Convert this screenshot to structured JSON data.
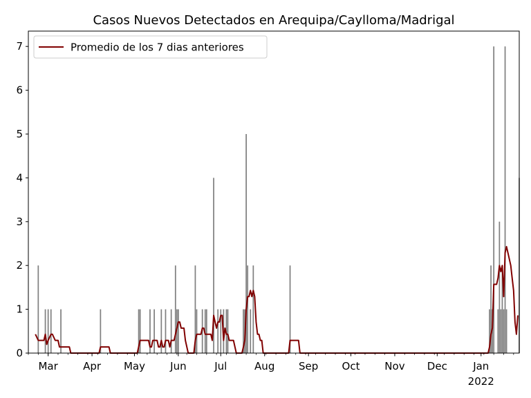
{
  "chart_data": {
    "type": "bar",
    "title": "Casos Nuevos Detectados en Arequipa/Caylloma/Madrigal",
    "xlabel": "",
    "ylabel": "",
    "ylim": [
      0,
      7.35
    ],
    "yticks": [
      0,
      1,
      2,
      3,
      4,
      5,
      6,
      7
    ],
    "xlim": [
      "2021-02-15",
      "2022-01-28"
    ],
    "xticks": [
      {
        "date": "2021-03-01",
        "label": "Mar"
      },
      {
        "date": "2021-04-01",
        "label": "Apr"
      },
      {
        "date": "2021-05-01",
        "label": "May"
      },
      {
        "date": "2021-06-01",
        "label": "Jun"
      },
      {
        "date": "2021-07-01",
        "label": "Jul"
      },
      {
        "date": "2021-08-01",
        "label": "Aug"
      },
      {
        "date": "2021-09-01",
        "label": "Sep"
      },
      {
        "date": "2021-10-01",
        "label": "Oct"
      },
      {
        "date": "2021-11-01",
        "label": "Nov"
      },
      {
        "date": "2021-12-01",
        "label": "Dec"
      },
      {
        "date": "2022-01-01",
        "label": "Jan"
      }
    ],
    "xtick_year_label": "2022",
    "legend": {
      "placement": "top-left",
      "label": "Promedio de los 7 dias anteriores"
    },
    "series": [
      {
        "kind": "bar",
        "color": "#808080",
        "points": [
          [
            "2021-02-22",
            2
          ],
          [
            "2021-02-27",
            1
          ],
          [
            "2021-03-01",
            1
          ],
          [
            "2021-03-03",
            1
          ],
          [
            "2021-03-10",
            1
          ],
          [
            "2021-04-07",
            1
          ],
          [
            "2021-05-04",
            1
          ],
          [
            "2021-05-05",
            1
          ],
          [
            "2021-05-12",
            1
          ],
          [
            "2021-05-15",
            1
          ],
          [
            "2021-05-20",
            1
          ],
          [
            "2021-05-23",
            1
          ],
          [
            "2021-05-27",
            1
          ],
          [
            "2021-05-30",
            2
          ],
          [
            "2021-05-31",
            1
          ],
          [
            "2021-06-01",
            1
          ],
          [
            "2021-06-13",
            2
          ],
          [
            "2021-06-14",
            1
          ],
          [
            "2021-06-18",
            1
          ],
          [
            "2021-06-20",
            1
          ],
          [
            "2021-06-21",
            1
          ],
          [
            "2021-06-26",
            4
          ],
          [
            "2021-06-29",
            1
          ],
          [
            "2021-07-01",
            1
          ],
          [
            "2021-07-03",
            1
          ],
          [
            "2021-07-05",
            1
          ],
          [
            "2021-07-06",
            1
          ],
          [
            "2021-07-17",
            1
          ],
          [
            "2021-07-18",
            1
          ],
          [
            "2021-07-19",
            5
          ],
          [
            "2021-07-20",
            2
          ],
          [
            "2021-07-22",
            1
          ],
          [
            "2021-07-24",
            2
          ],
          [
            "2021-08-19",
            2
          ],
          [
            "2022-01-07",
            1
          ],
          [
            "2022-01-08",
            2
          ],
          [
            "2022-01-09",
            1
          ],
          [
            "2022-01-10",
            7
          ],
          [
            "2022-01-13",
            1
          ],
          [
            "2022-01-14",
            3
          ],
          [
            "2022-01-15",
            1
          ],
          [
            "2022-01-16",
            2
          ],
          [
            "2022-01-17",
            1
          ],
          [
            "2022-01-18",
            7
          ],
          [
            "2022-01-19",
            1
          ],
          [
            "2022-01-28",
            4
          ]
        ]
      },
      {
        "kind": "line",
        "name": "Promedio de los 7 dias anteriores",
        "color": "#800000",
        "points": [
          [
            "2021-02-20",
            0.43
          ],
          [
            "2021-02-22",
            0.29
          ],
          [
            "2021-02-26",
            0.29
          ],
          [
            "2021-02-27",
            0.43
          ],
          [
            "2021-02-28",
            0.2
          ],
          [
            "2021-03-01",
            0.29
          ],
          [
            "2021-03-03",
            0.43
          ],
          [
            "2021-03-04",
            0.43
          ],
          [
            "2021-03-06",
            0.29
          ],
          [
            "2021-03-08",
            0.29
          ],
          [
            "2021-03-09",
            0.14
          ],
          [
            "2021-03-16",
            0.14
          ],
          [
            "2021-03-17",
            0.0
          ],
          [
            "2021-04-06",
            0.0
          ],
          [
            "2021-04-07",
            0.14
          ],
          [
            "2021-04-13",
            0.14
          ],
          [
            "2021-04-14",
            0.0
          ],
          [
            "2021-05-03",
            0.0
          ],
          [
            "2021-05-05",
            0.29
          ],
          [
            "2021-05-11",
            0.29
          ],
          [
            "2021-05-12",
            0.14
          ],
          [
            "2021-05-13",
            0.14
          ],
          [
            "2021-05-14",
            0.29
          ],
          [
            "2021-05-17",
            0.29
          ],
          [
            "2021-05-18",
            0.14
          ],
          [
            "2021-05-19",
            0.14
          ],
          [
            "2021-05-20",
            0.29
          ],
          [
            "2021-05-21",
            0.14
          ],
          [
            "2021-05-22",
            0.14
          ],
          [
            "2021-05-23",
            0.29
          ],
          [
            "2021-05-25",
            0.29
          ],
          [
            "2021-05-26",
            0.14
          ],
          [
            "2021-05-27",
            0.29
          ],
          [
            "2021-05-29",
            0.29
          ],
          [
            "2021-05-30",
            0.43
          ],
          [
            "2021-05-31",
            0.57
          ],
          [
            "2021-06-01",
            0.71
          ],
          [
            "2021-06-02",
            0.71
          ],
          [
            "2021-06-03",
            0.57
          ],
          [
            "2021-06-05",
            0.57
          ],
          [
            "2021-06-06",
            0.29
          ],
          [
            "2021-06-08",
            0.0
          ],
          [
            "2021-06-12",
            0.0
          ],
          [
            "2021-06-13",
            0.29
          ],
          [
            "2021-06-14",
            0.43
          ],
          [
            "2021-06-17",
            0.43
          ],
          [
            "2021-06-18",
            0.57
          ],
          [
            "2021-06-19",
            0.57
          ],
          [
            "2021-06-20",
            0.43
          ],
          [
            "2021-06-24",
            0.43
          ],
          [
            "2021-06-25",
            0.29
          ],
          [
            "2021-06-26",
            0.86
          ],
          [
            "2021-06-27",
            0.71
          ],
          [
            "2021-06-28",
            0.57
          ],
          [
            "2021-06-29",
            0.71
          ],
          [
            "2021-06-30",
            0.71
          ],
          [
            "2021-07-01",
            0.86
          ],
          [
            "2021-07-02",
            0.86
          ],
          [
            "2021-07-03",
            0.29
          ],
          [
            "2021-07-04",
            0.57
          ],
          [
            "2021-07-05",
            0.43
          ],
          [
            "2021-07-06",
            0.43
          ],
          [
            "2021-07-07",
            0.29
          ],
          [
            "2021-07-10",
            0.29
          ],
          [
            "2021-07-12",
            0.0
          ],
          [
            "2021-07-16",
            0.0
          ],
          [
            "2021-07-17",
            0.14
          ],
          [
            "2021-07-18",
            0.29
          ],
          [
            "2021-07-19",
            1.0
          ],
          [
            "2021-07-20",
            1.29
          ],
          [
            "2021-07-21",
            1.29
          ],
          [
            "2021-07-22",
            1.43
          ],
          [
            "2021-07-23",
            1.29
          ],
          [
            "2021-07-24",
            1.43
          ],
          [
            "2021-07-25",
            1.29
          ],
          [
            "2021-07-26",
            0.71
          ],
          [
            "2021-07-27",
            0.43
          ],
          [
            "2021-07-28",
            0.43
          ],
          [
            "2021-07-29",
            0.29
          ],
          [
            "2021-07-30",
            0.29
          ],
          [
            "2021-07-31",
            0.0
          ],
          [
            "2021-08-18",
            0.0
          ],
          [
            "2021-08-19",
            0.29
          ],
          [
            "2021-08-25",
            0.29
          ],
          [
            "2021-08-26",
            0.0
          ],
          [
            "2022-01-06",
            0.0
          ],
          [
            "2022-01-07",
            0.14
          ],
          [
            "2022-01-08",
            0.43
          ],
          [
            "2022-01-09",
            0.57
          ],
          [
            "2022-01-10",
            1.57
          ],
          [
            "2022-01-12",
            1.57
          ],
          [
            "2022-01-13",
            1.71
          ],
          [
            "2022-01-14",
            2.0
          ],
          [
            "2022-01-15",
            1.86
          ],
          [
            "2022-01-16",
            2.0
          ],
          [
            "2022-01-17",
            1.29
          ],
          [
            "2022-01-18",
            2.29
          ],
          [
            "2022-01-19",
            2.43
          ],
          [
            "2022-01-20",
            2.29
          ],
          [
            "2022-01-22",
            2.0
          ],
          [
            "2022-01-23",
            1.71
          ],
          [
            "2022-01-24",
            1.43
          ],
          [
            "2022-01-25",
            0.71
          ],
          [
            "2022-01-26",
            0.43
          ],
          [
            "2022-01-27",
            0.86
          ]
        ]
      }
    ]
  }
}
